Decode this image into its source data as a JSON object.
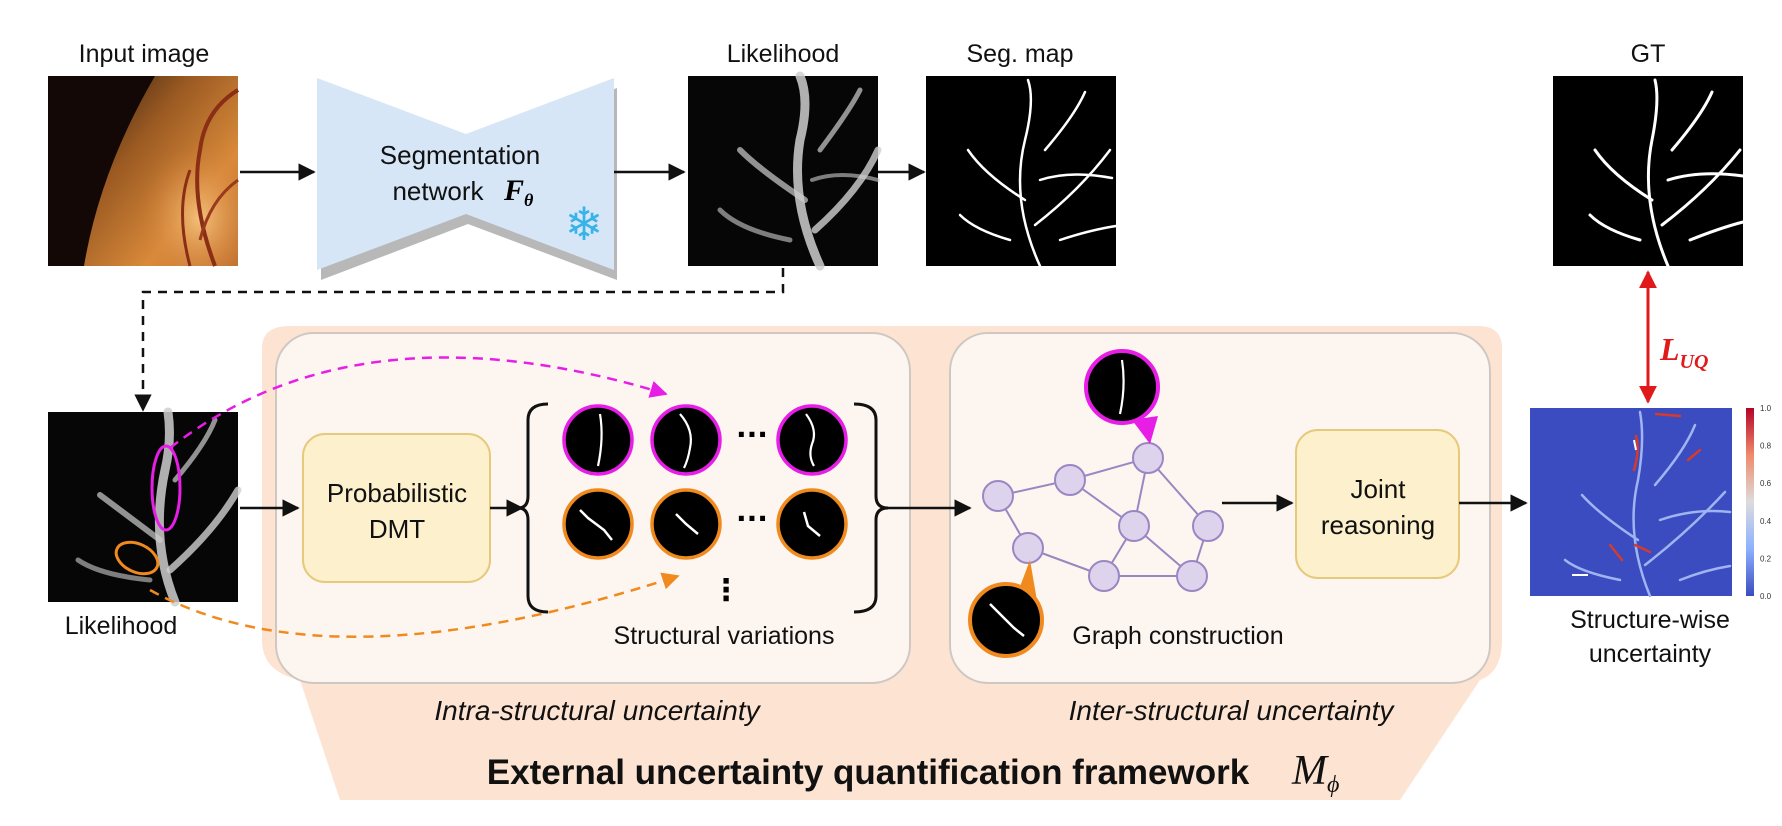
{
  "labels": {
    "input_image": "Input image",
    "likelihood_top": "Likelihood",
    "seg_map": "Seg. map",
    "gt": "GT",
    "likelihood_bottom": "Likelihood",
    "seg_network_line1": "Segmentation",
    "seg_network_line2": "network",
    "seg_network_symbol": "F",
    "seg_network_sub": "θ",
    "prob_dmt_line1": "Probabilistic",
    "prob_dmt_line2": "DMT",
    "structural_variations": "Structural variations",
    "graph_construction": "Graph construction",
    "joint_line1": "Joint",
    "joint_line2": "reasoning",
    "structure_wise_line1": "Structure-wise",
    "structure_wise_line2": "uncertainty",
    "intra": "Intra-structural uncertainty",
    "inter": "Inter-structural uncertainty",
    "framework": "External uncertainty quantification framework",
    "framework_symbol": "M",
    "framework_sub": "ϕ",
    "loss_symbol": "L",
    "loss_sub": "UQ",
    "ellipsis": "···",
    "vdots": "⋮"
  },
  "colorbar_ticks": [
    "1.0",
    "0.8",
    "0.6",
    "0.4",
    "0.2",
    "0.0"
  ],
  "icons": {
    "snowflake": "❄"
  },
  "colors": {
    "magenta": "#e61ee6",
    "orange": "#f08a1e",
    "red": "#e01a1a",
    "network_fill": "#d6e6f7",
    "panel_bg": "#fde3d2",
    "inner_panel": "#fdf5ef",
    "yellow_box": "#fdf0cc",
    "yellow_border": "#e6c97a",
    "node_fill": "#ddd3ec",
    "node_border": "#9a86c2",
    "heatmap_bg": "#3b4cc0"
  }
}
